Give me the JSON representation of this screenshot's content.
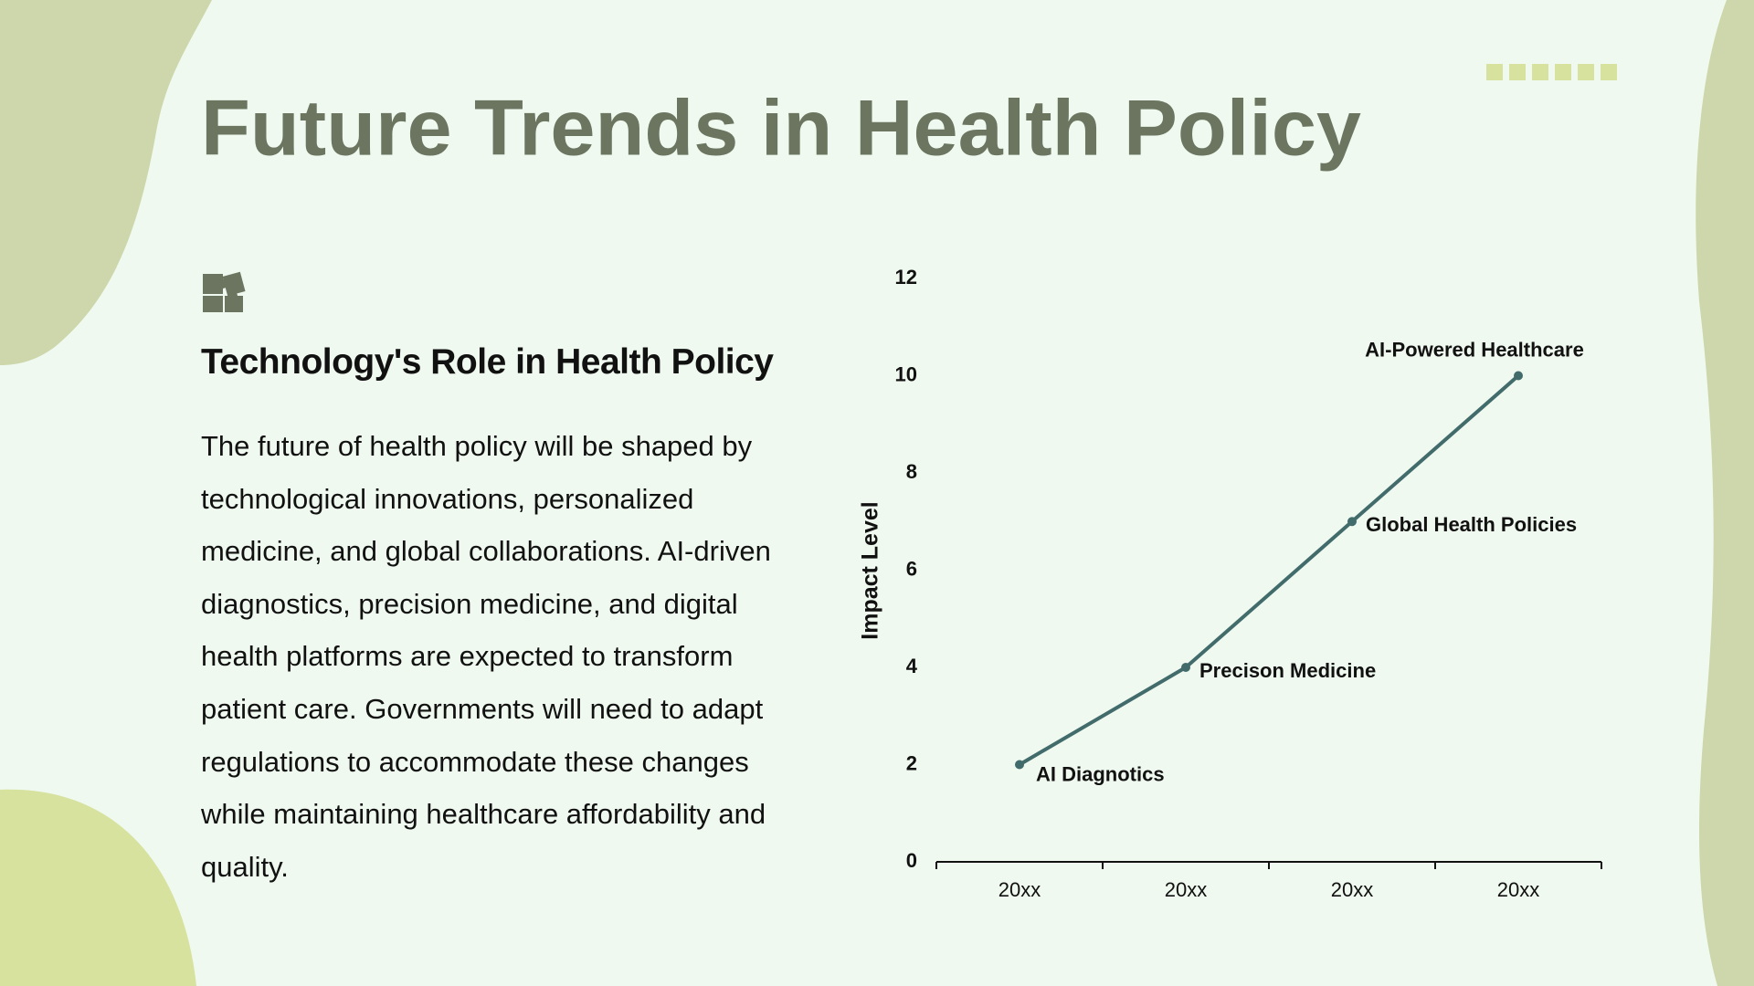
{
  "title": "Future Trends in Health Policy",
  "section": {
    "heading": "Technology's Role in Health Policy",
    "body": "The future of health policy will be shaped by technological innovations, personalized medicine, and global collaborations. AI-driven diagnostics, precision medicine, and digital health platforms are expected to transform patient care. Governments will need to adapt regulations to accommodate these changes while maintaining healthcare affordability and quality."
  },
  "chart_data": {
    "type": "line",
    "categories": [
      "20xx",
      "20xx",
      "20xx",
      "20xx"
    ],
    "values": [
      2,
      4,
      7,
      10
    ],
    "annotations": [
      "AI Diagnotics",
      "Precison Medicine",
      "Global Health Policies",
      "AI-Powered Healthcare"
    ],
    "ylabel": "Impact Level",
    "color": "#426b6b",
    "ylim": [
      0,
      12
    ],
    "yticks": [
      0,
      2,
      4,
      6,
      8,
      10,
      12
    ],
    "grid": false
  }
}
